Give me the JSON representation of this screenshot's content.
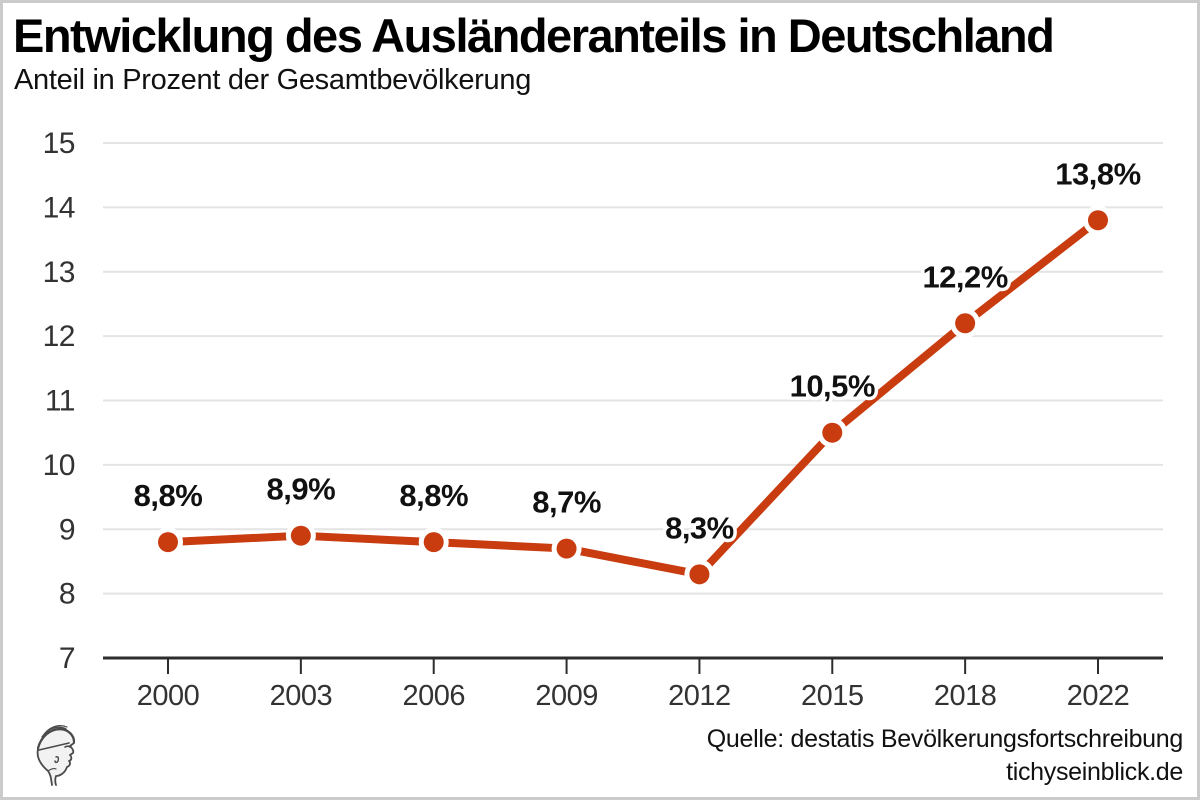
{
  "header": {
    "title": "Entwicklung des Ausländeranteils in Deutschland",
    "subtitle": "Anteil in Prozent der Gesamtbevölkerung"
  },
  "footer": {
    "source_line1": "Quelle: destatis Bevölkerungsfortschreibung",
    "source_line2": "tichyseinblick.de",
    "logo": "tichys-einblick-classical-head-logo"
  },
  "colors": {
    "line": "#c83c10",
    "point": "#c83c10",
    "point_halo": "#ffffff",
    "grid": "#e4e4e4",
    "axis": "#2d2d2d",
    "tick_text": "#333333",
    "data_label": "#111111",
    "background": "#ffffff",
    "border": "#cbcbcb"
  },
  "chart_data": {
    "type": "line",
    "title": "Entwicklung des Ausländeranteils in Deutschland",
    "subtitle": "Anteil in Prozent der Gesamtbevölkerung",
    "categories": [
      "2000",
      "2003",
      "2006",
      "2009",
      "2012",
      "2015",
      "2018",
      "2022"
    ],
    "values": [
      8.8,
      8.9,
      8.8,
      8.7,
      8.3,
      10.5,
      12.2,
      13.8
    ],
    "point_labels": [
      "8,8%",
      "8,9%",
      "8,8%",
      "8,7%",
      "8,3%",
      "10,5%",
      "12,2%",
      "13,8%"
    ],
    "xlabel": "",
    "ylabel": "",
    "ylim": [
      7,
      15
    ],
    "yticks": [
      7,
      8,
      9,
      10,
      11,
      12,
      13,
      14,
      15
    ],
    "grid": true,
    "legend": false,
    "source": "Quelle: destatis Bevölkerungsfortschreibung",
    "credit": "tichyseinblick.de"
  }
}
